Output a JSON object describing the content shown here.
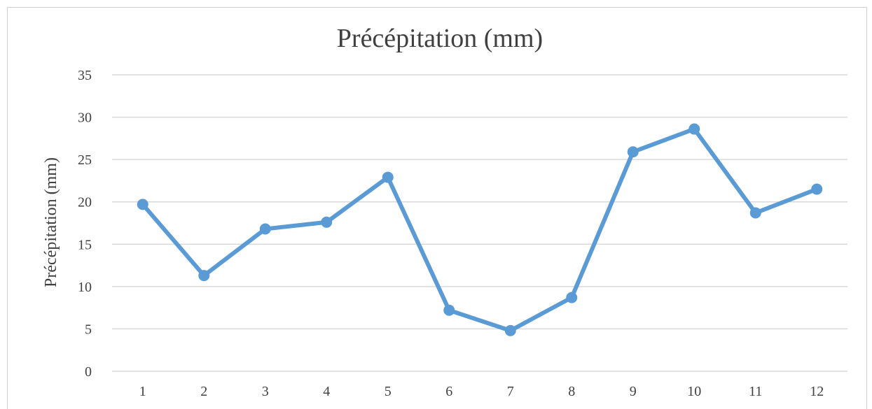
{
  "chart_data": {
    "type": "line",
    "title": "Précépitation  (mm)",
    "xlabel": "",
    "ylabel": "Précépitation (mm)",
    "categories": [
      "1",
      "2",
      "3",
      "4",
      "5",
      "6",
      "7",
      "8",
      "9",
      "10",
      "11",
      "12"
    ],
    "series": [
      {
        "values": [
          19.7,
          11.3,
          16.8,
          17.6,
          22.9,
          7.2,
          4.8,
          8.7,
          25.9,
          28.6,
          18.7,
          21.5
        ],
        "color": "#5b9bd5"
      }
    ],
    "ylim": [
      0,
      35
    ],
    "yticks": [
      0,
      5,
      10,
      15,
      20,
      25,
      30,
      35
    ],
    "grid": true,
    "legend": "none"
  }
}
